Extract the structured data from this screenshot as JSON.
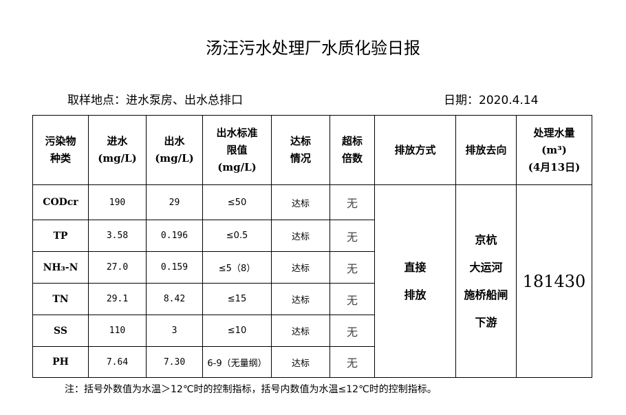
{
  "title": "汤汪污水处理厂水质化验日报",
  "location": "取样地点：进水泵房、出水总排口",
  "date": "日期：2020.4.14",
  "headers": {
    "pollutant": [
      "污染物",
      "种类"
    ],
    "inflow": [
      "进水",
      "(mg/L)"
    ],
    "outflow": [
      "出水",
      "(mg/L)"
    ],
    "limit": [
      "出水标准",
      "限值",
      "(mg/L)"
    ],
    "compliance": [
      "达标",
      "情况"
    ],
    "exceed": [
      "超标",
      "倍数"
    ],
    "discharge_mode": "排放方式",
    "discharge_dest": "排放去向",
    "volume": [
      "处理水量",
      "(m³)",
      "(4月13日)"
    ]
  },
  "rows": [
    {
      "name": "CODcr",
      "in": "190",
      "out": "29",
      "limit": "≤50",
      "status": "达标",
      "exceed": "无"
    },
    {
      "name": "TP",
      "in": "3.58",
      "out": "0.196",
      "limit": "≤0.5",
      "status": "达标",
      "exceed": "无"
    },
    {
      "name": "NH₃-N",
      "in": "27.0",
      "out": "0.159",
      "limit": "≤5（8）",
      "status": "达标",
      "exceed": "无"
    },
    {
      "name": "TN",
      "in": "29.1",
      "out": "8.42",
      "limit": "≤15",
      "status": "达标",
      "exceed": "无"
    },
    {
      "name": "SS",
      "in": "110",
      "out": "3",
      "limit": "≤10",
      "status": "达标",
      "exceed": "无"
    },
    {
      "name": "PH",
      "in": "7.64",
      "out": "7.30",
      "limit": "6-9（无量纲）",
      "status": "达标",
      "exceed": "无"
    }
  ],
  "discharge_mode": [
    "直接",
    "排放"
  ],
  "discharge_dest": [
    "京杭",
    "大运河",
    "施桥船闸",
    "下游"
  ],
  "volume": "181430",
  "note": "注：括号外数值为水温＞12℃时的控制指标，括号内数值为水温≤12℃时的控制指标。"
}
